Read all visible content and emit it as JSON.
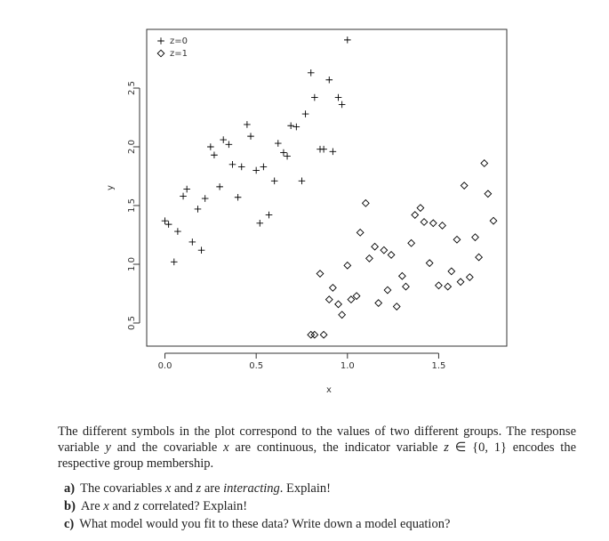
{
  "chart_data": {
    "type": "scatter",
    "xlabel": "x",
    "ylabel": "y",
    "xlim": [
      -0.1,
      1.873
    ],
    "ylim": [
      0.303,
      3.0
    ],
    "xticks": [
      {
        "value": 0,
        "label": "0.0"
      },
      0.5,
      {
        "value": 1,
        "label": "1.0"
      },
      1.5
    ],
    "yticks": [
      0.5,
      {
        "value": 1,
        "label": "1.0"
      },
      1.5,
      {
        "value": 2,
        "label": "2.0"
      },
      2.5
    ],
    "legend": "upper left",
    "series": [
      {
        "name": "z=0",
        "color": "#000000",
        "marker": "plus",
        "x": [
          0.0,
          0.02,
          0.07,
          0.05,
          0.1,
          0.12,
          0.15,
          0.18,
          0.2,
          0.22,
          0.25,
          0.27,
          0.3,
          0.32,
          0.35,
          0.37,
          0.4,
          0.42,
          0.45,
          0.47,
          0.5,
          0.52,
          0.54,
          0.57,
          0.6,
          0.62,
          0.65,
          0.67,
          0.69,
          0.72,
          0.75,
          0.77,
          0.8,
          0.82,
          0.85,
          0.87,
          0.9,
          0.92,
          0.95,
          0.97,
          1.0
        ],
        "values": [
          1.37,
          1.34,
          1.28,
          1.02,
          1.58,
          1.64,
          1.19,
          1.47,
          1.12,
          1.56,
          2.0,
          1.93,
          1.66,
          2.06,
          2.02,
          1.85,
          1.57,
          1.83,
          2.19,
          2.09,
          1.8,
          1.35,
          1.83,
          1.42,
          1.71,
          2.03,
          1.95,
          1.92,
          2.18,
          2.17,
          1.71,
          2.28,
          2.63,
          2.42,
          1.98,
          1.98,
          2.57,
          1.96,
          2.42,
          2.36,
          2.91
        ]
      },
      {
        "name": "z=1",
        "color": "#000000",
        "marker": "diamond",
        "x": [
          0.8,
          0.82,
          0.85,
          0.87,
          0.9,
          0.92,
          0.95,
          0.97,
          1.0,
          1.02,
          1.05,
          1.07,
          1.1,
          1.12,
          1.15,
          1.17,
          1.2,
          1.22,
          1.24,
          1.27,
          1.3,
          1.32,
          1.35,
          1.37,
          1.4,
          1.42,
          1.45,
          1.47,
          1.5,
          1.52,
          1.55,
          1.57,
          1.6,
          1.62,
          1.64,
          1.67,
          1.7,
          1.72,
          1.75,
          1.77,
          1.8
        ],
        "values": [
          0.4,
          0.4,
          0.92,
          0.4,
          0.7,
          0.8,
          0.66,
          0.57,
          0.99,
          0.7,
          0.73,
          1.27,
          1.52,
          1.05,
          1.15,
          0.67,
          1.12,
          0.78,
          1.08,
          0.64,
          0.9,
          0.81,
          1.18,
          1.42,
          1.48,
          1.36,
          1.01,
          1.35,
          0.82,
          1.33,
          0.81,
          0.94,
          1.21,
          0.85,
          1.67,
          0.89,
          1.23,
          1.06,
          1.86,
          1.6,
          1.37
        ]
      }
    ]
  },
  "text": {
    "paragraph": [
      "The different symbols in the plot correspond to the values of two different groups. The response variable ",
      "y",
      " and the covariable ",
      "x",
      " are continuous, the indicator variable ",
      "z",
      " ∈ {0, 1} encodes the respective group membership."
    ],
    "questions": [
      {
        "label": "a)",
        "parts": [
          "The covariables ",
          "x",
          " and ",
          "z",
          " are ",
          "interacting",
          ". Explain!"
        ]
      },
      {
        "label": "b)",
        "parts": [
          "Are ",
          "x",
          " and ",
          "z",
          " correlated? Explain!"
        ]
      },
      {
        "label": "c)",
        "parts": [
          "What model would you fit to these data? Write down a model equation?"
        ]
      }
    ]
  }
}
